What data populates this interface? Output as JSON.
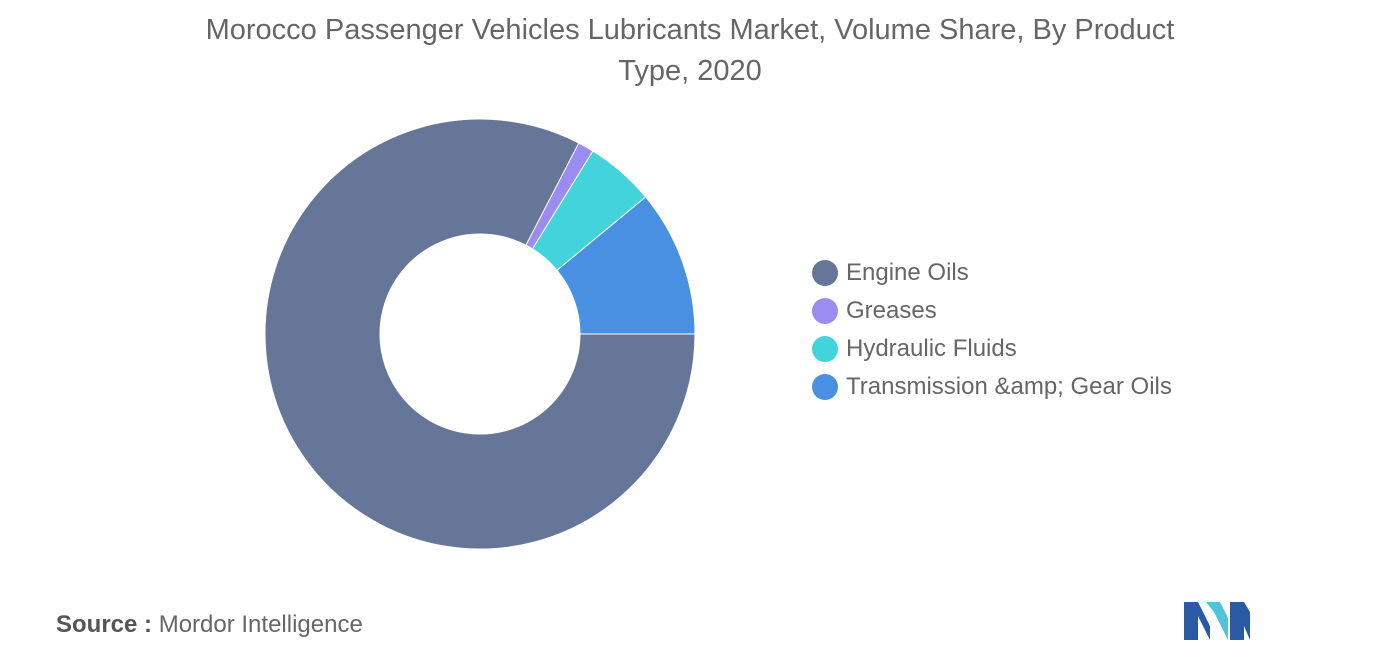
{
  "title_line1": "Morocco Passenger Vehicles Lubricants Market, Volume Share, By Product",
  "title_line2": "Type, 2020",
  "source_label": "Source :",
  "source_name": "Mordor Intelligence",
  "chart_data": {
    "type": "pie",
    "variant": "donut",
    "title": "Morocco Passenger Vehicles Lubricants Market, Volume Share, By Product Type, 2020",
    "legend_position": "right",
    "categories": [
      "Engine Oils",
      "Greases",
      "Hydraulic Fluids",
      "Transmission &amp; Gear Oils"
    ],
    "values": [
      82.6,
      1.2,
      5.2,
      11.0
    ],
    "unit": "%",
    "colors": [
      "#657698",
      "#9b8cf2",
      "#42d3db",
      "#4a90e2"
    ]
  },
  "legend": [
    {
      "label": "Engine Oils",
      "color": "#657698"
    },
    {
      "label": "Greases",
      "color": "#9b8cf2"
    },
    {
      "label": "Hydraulic Fluids",
      "color": "#42d3db"
    },
    {
      "label": "Transmission &amp; Gear Oils",
      "color": "#4a90e2"
    }
  ],
  "logo": {
    "icon": "mordor-intelligence-logo-icon",
    "colors": [
      "#2b5aa5",
      "#4fc3d9"
    ]
  }
}
